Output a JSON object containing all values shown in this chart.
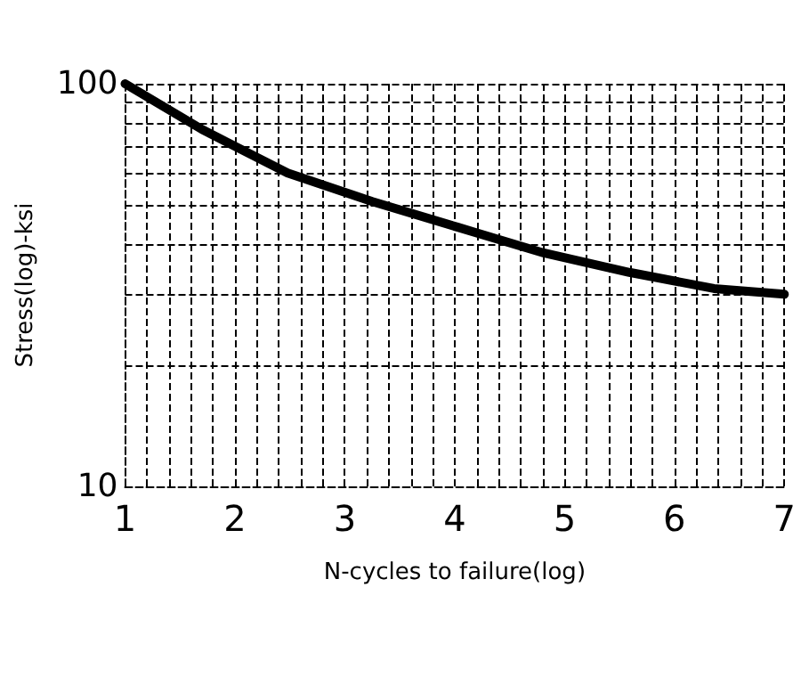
{
  "chart_data": {
    "type": "line",
    "xlabel": "N-cycles to failure(log)",
    "ylabel": "Stress(log)-ksi",
    "x": [
      1,
      1.7,
      2.48,
      3.25,
      4.03,
      4.81,
      5.59,
      6.36,
      7
    ],
    "series": [
      {
        "color": "#000000",
        "values": [
          100,
          77,
          60,
          51,
          44,
          38,
          34,
          31,
          30
        ]
      }
    ],
    "xlim": [
      1,
      7
    ],
    "xticks": [
      1,
      2,
      3,
      4,
      5,
      6,
      7
    ],
    "ylim": [
      10,
      100
    ],
    "yticks": [
      10,
      100
    ],
    "log": "y",
    "grid": true,
    "marker": "none",
    "line_style": "solid"
  }
}
